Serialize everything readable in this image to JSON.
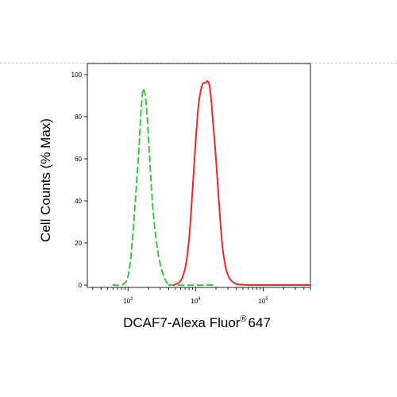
{
  "chart_data": {
    "type": "line",
    "title": "",
    "xlabel_main": "DCAF7-Alexa Fluor",
    "xlabel_super": "®",
    "xlabel_tail": "647",
    "ylabel": "Cell Counts (% Max)",
    "xscale": "log",
    "xlim": [
      250,
      500000
    ],
    "ylim": [
      0,
      100
    ],
    "x_ticks": [
      {
        "base": "10",
        "exp": "3",
        "value": 1000
      },
      {
        "base": "10",
        "exp": "4",
        "value": 10000
      },
      {
        "base": "10",
        "exp": "5",
        "value": 100000
      }
    ],
    "y_ticks": [
      {
        "label": "0",
        "value": 0
      },
      {
        "label": "20",
        "value": 20
      },
      {
        "label": "40",
        "value": 40
      },
      {
        "label": "60",
        "value": 60
      },
      {
        "label": "80",
        "value": 80
      },
      {
        "label": "100",
        "value": 100
      }
    ],
    "grid": false,
    "legend": "none",
    "series": [
      {
        "color": "#33cc33",
        "style": "dashed",
        "points": [
          [
            600,
            0
          ],
          [
            800,
            0
          ],
          [
            950,
            2
          ],
          [
            1050,
            8
          ],
          [
            1150,
            20
          ],
          [
            1250,
            35
          ],
          [
            1350,
            50
          ],
          [
            1450,
            65
          ],
          [
            1550,
            82
          ],
          [
            1650,
            92
          ],
          [
            1700,
            93
          ],
          [
            1800,
            90
          ],
          [
            1900,
            82
          ],
          [
            2050,
            65
          ],
          [
            2200,
            48
          ],
          [
            2400,
            32
          ],
          [
            2700,
            18
          ],
          [
            3000,
            10
          ],
          [
            3400,
            4
          ],
          [
            3800,
            1
          ],
          [
            4300,
            0
          ],
          [
            20000,
            0
          ]
        ]
      },
      {
        "color": "#ff2222",
        "style": "solid",
        "points": [
          [
            4700,
            0
          ],
          [
            5200,
            0.5
          ],
          [
            6000,
            2
          ],
          [
            7000,
            8
          ],
          [
            8000,
            22
          ],
          [
            9000,
            45
          ],
          [
            10000,
            68
          ],
          [
            11000,
            85
          ],
          [
            12000,
            93
          ],
          [
            13000,
            96
          ],
          [
            14000,
            96
          ],
          [
            15000,
            97
          ],
          [
            16000,
            95
          ],
          [
            17000,
            88
          ],
          [
            18000,
            78
          ],
          [
            19500,
            65
          ],
          [
            21000,
            50
          ],
          [
            23000,
            32
          ],
          [
            25000,
            18
          ],
          [
            28000,
            8
          ],
          [
            32000,
            3
          ],
          [
            40000,
            0.5
          ],
          [
            50000,
            0.2
          ],
          [
            70000,
            0
          ],
          [
            500000,
            0
          ]
        ]
      }
    ]
  }
}
